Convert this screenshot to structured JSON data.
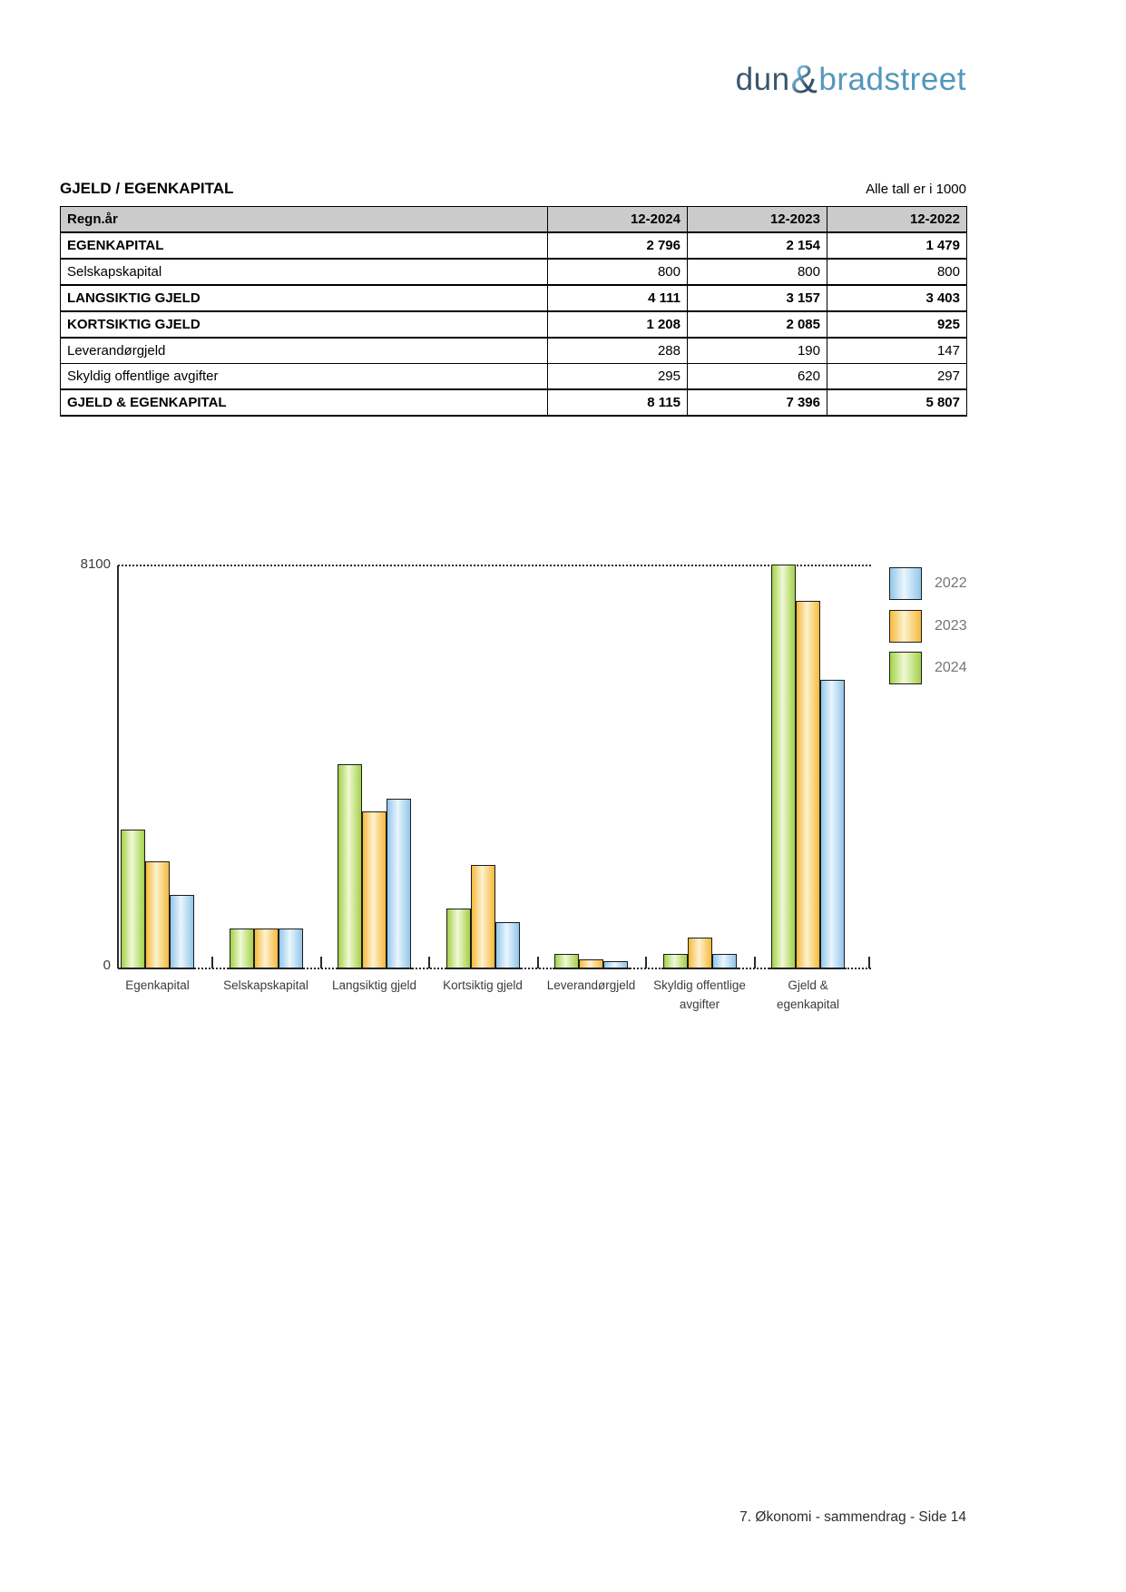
{
  "logo": {
    "part1": "dun",
    "ampersand": "&",
    "part2": "bradstreet"
  },
  "header": {
    "title": "GJELD / EGENKAPITAL",
    "units_note": "Alle tall er i 1000"
  },
  "table": {
    "columns": [
      "Regn.år",
      "12-2024",
      "12-2023",
      "12-2022"
    ],
    "rows": [
      {
        "label": "EGENKAPITAL",
        "values": [
          "2 796",
          "2 154",
          "1 479"
        ],
        "bold": true
      },
      {
        "label": "Selskapskapital",
        "values": [
          "800",
          "800",
          "800"
        ],
        "bold": false
      },
      {
        "label": "LANGSIKTIG GJELD",
        "values": [
          "4 111",
          "3 157",
          "3 403"
        ],
        "bold": true
      },
      {
        "label": "KORTSIKTIG GJELD",
        "values": [
          "1 208",
          "2 085",
          "925"
        ],
        "bold": true
      },
      {
        "label": "Leverandørgjeld",
        "values": [
          "288",
          "190",
          "147"
        ],
        "bold": false
      },
      {
        "label": "Skyldig offentlige avgifter",
        "values": [
          "295",
          "620",
          "297"
        ],
        "bold": false
      },
      {
        "label": "GJELD & EGENKAPITAL",
        "values": [
          "8 115",
          "7 396",
          "5 807"
        ],
        "bold": true
      }
    ]
  },
  "chart_data": {
    "type": "bar",
    "title": "",
    "xlabel": "",
    "ylabel": "",
    "ylim": [
      0,
      8100
    ],
    "ytick_labels": [
      "0",
      "8100"
    ],
    "grid": "dotted line at y=8100 and dotted baseline",
    "legend_position": "top-right",
    "categories": [
      "Egenkapital",
      "Selskapskapital",
      "Langsiktig gjeld",
      "Kortsiktig gjeld",
      "Leverandørgjeld",
      "Skyldig offentlige\navgifter",
      "Gjeld &\negenkapital"
    ],
    "series": [
      {
        "name": "2024",
        "edge_color": "#a3d148",
        "mid_color": "#f0f9d6",
        "values": [
          2796,
          800,
          4111,
          1208,
          288,
          295,
          8115
        ]
      },
      {
        "name": "2023",
        "edge_color": "#f6b93c",
        "mid_color": "#fdf2cf",
        "values": [
          2154,
          800,
          3157,
          2085,
          190,
          620,
          7396
        ]
      },
      {
        "name": "2022",
        "edge_color": "#92c6ea",
        "mid_color": "#eaf6fd",
        "values": [
          1479,
          800,
          3403,
          925,
          147,
          297,
          5807
        ]
      }
    ],
    "bar_draw_order": [
      "2024",
      "2023",
      "2022"
    ],
    "legend_entries": [
      "2022",
      "2023",
      "2024"
    ]
  },
  "footer": {
    "text": "7. Økonomi - sammendrag - Side 14"
  }
}
